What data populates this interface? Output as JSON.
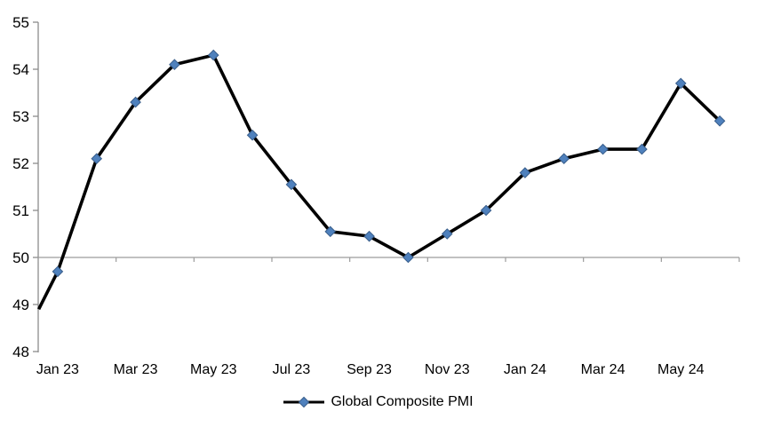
{
  "chart_data": {
    "type": "line",
    "title": "",
    "legend": {
      "label": "Global Composite PMI",
      "position": "bottom"
    },
    "categories": [
      "Jan 23",
      "Feb 23",
      "Mar 23",
      "Apr 23",
      "May 23",
      "Jun 23",
      "Jul 23",
      "Aug 23",
      "Sep 23",
      "Oct 23",
      "Nov 23",
      "Dec 23",
      "Jan 24",
      "Feb 24",
      "Mar 24",
      "Apr 24",
      "May 24",
      "Jun 24"
    ],
    "series": [
      {
        "name": "Global Composite PMI",
        "values": [
          49.7,
          52.1,
          53.3,
          54.1,
          54.3,
          52.6,
          51.55,
          50.55,
          50.45,
          50.0,
          50.5,
          51.0,
          51.8,
          52.1,
          52.3,
          52.3,
          53.7,
          52.9
        ]
      }
    ],
    "line_enters_left_axis_at": 48.9,
    "ylim": [
      48,
      55
    ],
    "y_tick_step": 1,
    "y_tick_labels": [
      "48",
      "49",
      "50",
      "51",
      "52",
      "53",
      "54",
      "55"
    ],
    "x_label_interval": 2,
    "x_tick_labels_shown": [
      "Jan 23",
      "Mar 23",
      "May 23",
      "Jul 23",
      "Sep 23",
      "Nov 23",
      "Jan 24",
      "Mar 24",
      "May 24"
    ],
    "category_axis_cross_value": 50,
    "grid": "single horizontal axis line at 50 with outside ticks every 2 categories; no other gridlines; no plot border",
    "colors": {
      "line": "#000000",
      "marker_fill": "#4f81bd",
      "marker_border": "#385d8a",
      "axis": "#8c8c8c",
      "gridline_50": "#9c9c9c",
      "text": "#000000"
    }
  }
}
